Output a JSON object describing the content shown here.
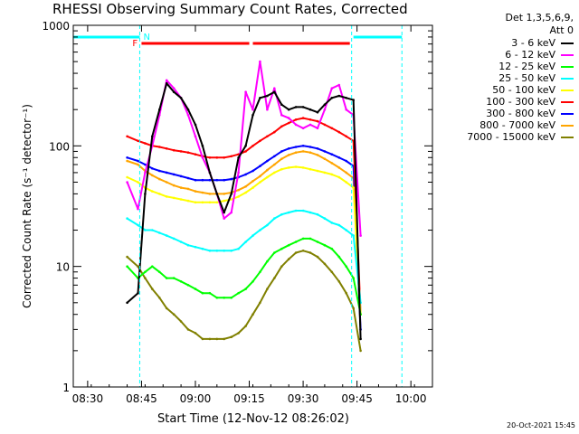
{
  "title": "RHESSI Observing Summary Count Rates, Corrected",
  "legend_header": [
    "Det 1,3,5,6,9,",
    "Att 0"
  ],
  "timestamp": "20-Oct-2021 15:45",
  "colors": {
    "axes": "#000000",
    "3-6": "#000000",
    "6-12": "#ff00ff",
    "12-25": "#00ff00",
    "25-50": "#00ffff",
    "50-100": "#ffff00",
    "100-300": "#ff0000",
    "300-800": "#0000ff",
    "800-7000": "#ffa500",
    "7000-15000": "#808000",
    "flags_saa": "#00ffff",
    "flags_flare": "#ff0000"
  },
  "chart_data": {
    "type": "line",
    "title": "RHESSI Observing Summary Count Rates, Corrected",
    "xlabel": "Start Time (12-Nov-12 08:26:02)",
    "ylabel": "Corrected Count Rate (s⁻¹ detector⁻¹)",
    "y_scale": "log",
    "ylim": [
      1,
      1000
    ],
    "xlim_minutes_after_0826": [
      0,
      100
    ],
    "x_tick_labels": [
      "08:30",
      "08:45",
      "09:00",
      "09:15",
      "09:30",
      "09:45",
      "10:00"
    ],
    "x_tick_minutes_after_0826": [
      4,
      19,
      34,
      49,
      64,
      79,
      94
    ],
    "y_tick_labels": [
      "1",
      "10",
      "100",
      "1000"
    ],
    "y_ticks": [
      1,
      10,
      100,
      1000
    ],
    "grid": false,
    "legend_position": "right",
    "x_minutes_after_0826": [
      15,
      18,
      20,
      22,
      24,
      26,
      28,
      30,
      32,
      34,
      36,
      38,
      40,
      42,
      44,
      46,
      48,
      50,
      52,
      54,
      56,
      58,
      60,
      62,
      64,
      66,
      68,
      70,
      72,
      74,
      76,
      78,
      80
    ],
    "series": [
      {
        "name": "3 - 6 keV",
        "key": "3-6",
        "values": [
          5,
          6,
          40,
          120,
          200,
          330,
          280,
          250,
          200,
          150,
          100,
          60,
          40,
          28,
          40,
          80,
          100,
          180,
          250,
          260,
          280,
          220,
          200,
          210,
          210,
          200,
          190,
          220,
          250,
          260,
          250,
          240,
          2.5
        ]
      },
      {
        "name": "6 - 12 keV",
        "key": "6-12",
        "values": [
          50,
          30,
          60,
          100,
          180,
          350,
          300,
          250,
          180,
          120,
          80,
          60,
          40,
          25,
          28,
          60,
          280,
          200,
          500,
          200,
          300,
          180,
          170,
          150,
          140,
          150,
          140,
          200,
          300,
          320,
          200,
          180,
          18
        ]
      },
      {
        "name": "12 - 25 keV",
        "key": "12-25",
        "values": [
          10,
          8,
          9,
          10,
          9,
          8,
          8,
          7.5,
          7,
          6.5,
          6,
          6,
          5.5,
          5.5,
          5.5,
          6,
          6.5,
          7.5,
          9,
          11,
          13,
          14,
          15,
          16,
          17,
          17,
          16,
          15,
          14,
          12,
          10,
          8,
          4
        ]
      },
      {
        "name": "25 - 50 keV",
        "key": "25-50",
        "values": [
          25,
          22,
          20,
          20,
          19,
          18,
          17,
          16,
          15,
          14.5,
          14,
          13.5,
          13.5,
          13.5,
          13.5,
          14,
          16,
          18,
          20,
          22,
          25,
          27,
          28,
          29,
          29,
          28,
          27,
          25,
          23,
          22,
          20,
          18,
          5
        ]
      },
      {
        "name": "50 - 100 keV",
        "key": "50-100",
        "values": [
          55,
          50,
          45,
          42,
          40,
          38,
          37,
          36,
          35,
          34,
          34,
          34,
          34,
          35,
          36,
          38,
          41,
          45,
          50,
          55,
          60,
          64,
          66,
          67,
          66,
          64,
          62,
          60,
          58,
          55,
          50,
          45,
          4
        ]
      },
      {
        "name": "100 - 300 keV",
        "key": "100-300",
        "values": [
          120,
          110,
          105,
          100,
          98,
          95,
          92,
          90,
          88,
          85,
          82,
          80,
          80,
          80,
          82,
          85,
          90,
          100,
          110,
          120,
          130,
          145,
          155,
          165,
          170,
          165,
          160,
          150,
          140,
          130,
          120,
          110,
          4
        ]
      },
      {
        "name": "300 - 800 keV",
        "key": "300-800",
        "values": [
          80,
          75,
          70,
          65,
          62,
          60,
          58,
          56,
          54,
          52,
          52,
          52,
          52,
          52,
          53,
          55,
          58,
          62,
          68,
          75,
          82,
          90,
          95,
          98,
          100,
          98,
          95,
          90,
          85,
          80,
          75,
          68,
          3
        ]
      },
      {
        "name": "800 - 7000 keV",
        "key": "800-7000",
        "values": [
          75,
          70,
          62,
          57,
          53,
          50,
          47,
          45,
          44,
          42,
          41,
          40,
          40,
          40,
          41,
          43,
          46,
          51,
          56,
          63,
          70,
          78,
          84,
          88,
          90,
          88,
          84,
          78,
          72,
          66,
          60,
          54,
          3
        ]
      },
      {
        "name": "7000 - 15000 keV",
        "key": "7000-15000",
        "values": [
          12,
          10,
          8,
          6.5,
          5.5,
          4.5,
          4,
          3.5,
          3,
          2.8,
          2.5,
          2.5,
          2.5,
          2.5,
          2.6,
          2.8,
          3.2,
          4,
          5,
          6.5,
          8,
          10,
          11.5,
          13,
          13.5,
          13,
          12,
          10.5,
          9,
          7.5,
          6,
          4.5,
          2
        ]
      }
    ],
    "flags": {
      "saa_label": "N",
      "flare_label": "F",
      "saa_lines_minutes_after_0826": [
        18.5,
        77.5,
        91.5
      ],
      "saa_intervals_minutes_after_0826": [
        [
          0,
          18.5
        ],
        [
          78,
          91.5
        ]
      ],
      "flare_intervals_minutes_after_0826": [
        [
          19,
          49
        ],
        [
          50,
          77
        ]
      ]
    }
  }
}
